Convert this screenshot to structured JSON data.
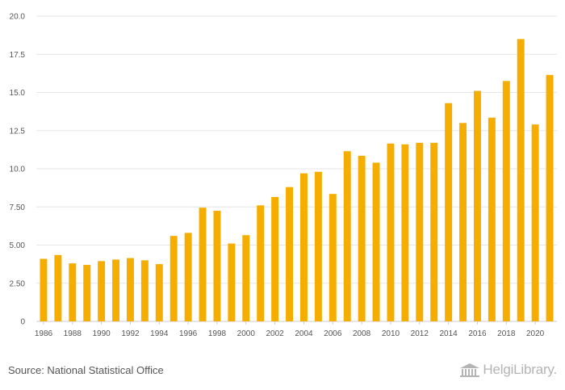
{
  "chart_data": {
    "type": "bar",
    "title": "",
    "xlabel": "",
    "ylabel": "",
    "ylim": [
      0,
      20
    ],
    "yticks": [
      "0",
      "2.50",
      "5.00",
      "7.50",
      "10.0",
      "12.5",
      "15.0",
      "17.5",
      "20.0"
    ],
    "ytick_values": [
      0,
      2.5,
      5,
      7.5,
      10,
      12.5,
      15,
      17.5,
      20
    ],
    "categories": [
      "1986",
      "1987",
      "1988",
      "1989",
      "1990",
      "1991",
      "1992",
      "1993",
      "1994",
      "1995",
      "1996",
      "1997",
      "1998",
      "1999",
      "2000",
      "2001",
      "2002",
      "2003",
      "2004",
      "2005",
      "2006",
      "2007",
      "2008",
      "2009",
      "2010",
      "2011",
      "2012",
      "2013",
      "2014",
      "2015",
      "2016",
      "2017",
      "2018",
      "2019",
      "2020",
      "2021"
    ],
    "xtick_labels": [
      "1986",
      "1988",
      "1990",
      "1992",
      "1994",
      "1996",
      "1998",
      "2000",
      "2002",
      "2004",
      "2006",
      "2008",
      "2010",
      "2012",
      "2014",
      "2016",
      "2018",
      "2020"
    ],
    "values": [
      4.1,
      4.35,
      3.8,
      3.7,
      3.95,
      4.05,
      4.15,
      4.0,
      3.75,
      5.6,
      5.8,
      7.45,
      7.25,
      5.1,
      5.65,
      7.6,
      8.15,
      8.8,
      9.7,
      9.8,
      8.35,
      11.15,
      10.85,
      10.4,
      11.65,
      11.6,
      11.7,
      11.7,
      14.3,
      13.0,
      15.1,
      13.35,
      15.75,
      18.5,
      12.9,
      16.15
    ],
    "bar_color": "#f5ae00",
    "grid_color": "#e6e6e6"
  },
  "footer": {
    "source": "Source: National Statistical Office",
    "logo_text": "HelgiLibrary."
  }
}
